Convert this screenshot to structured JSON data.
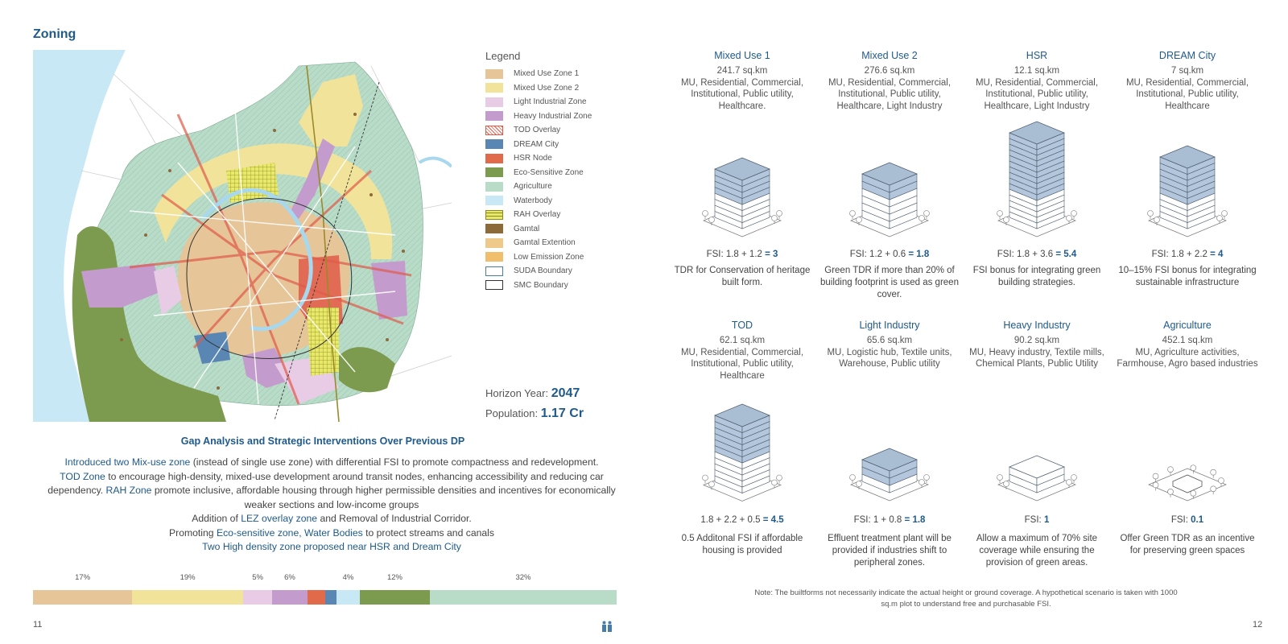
{
  "left_page": {
    "title": "Zoning",
    "legend": {
      "title": "Legend",
      "items": [
        {
          "label": "Mixed Use Zone 1",
          "color": "#e6c598"
        },
        {
          "label": "Mixed Use Zone 2",
          "color": "#f1e49a"
        },
        {
          "label": "Light Industrial Zone",
          "color": "#e8cce6"
        },
        {
          "label": "Heavy Industrial Zone",
          "color": "#c39bcc"
        },
        {
          "label": "TOD Overlay",
          "color": "#e05a4a"
        },
        {
          "label": "DREAM City",
          "color": "#5a86b4"
        },
        {
          "label": "HSR Node",
          "color": "#e06a4a"
        },
        {
          "label": "Eco-Sensitive Zone",
          "color": "#7d9b4e"
        },
        {
          "label": "Agriculture",
          "color": "#b9dcc9"
        },
        {
          "label": "Waterbody",
          "color": "#c8e8f5"
        },
        {
          "label": "RAH Overlay",
          "color": "#d6da4a"
        },
        {
          "label": "Gamtal",
          "color": "#8c6a3a"
        },
        {
          "label": "Gamtal Extention",
          "color": "#efc98a"
        },
        {
          "label": "Low Emission Zone",
          "color": "#f1be6e"
        },
        {
          "label": "SUDA Boundary",
          "color": "#4a7ca8"
        },
        {
          "label": "SMC Boundary",
          "color": "#333333"
        }
      ]
    },
    "horizon_label": "Horizon Year:",
    "horizon_value": "2047",
    "population_label": "Population:",
    "population_value": "1.17 Cr",
    "gap_title": "Gap Analysis and Strategic Interventions Over Previous DP",
    "gap": {
      "l1_a": "Introduced two Mix-use zone",
      "l1_b": " (instead of single use zone) with differential FSI to promote compactness and redevelopment.",
      "l2_a": "TOD Zone",
      "l2_b": " to encourage high-density, mixed-use development around transit nodes, enhancing accessibility and reducing car dependency. ",
      "l2_c": "RAH Zone",
      "l2_d": " promote inclusive, affordable housing through higher permissible densities and incentives for economically weaker sections and low-income groups",
      "l3_a": "Addition of ",
      "l3_b": "LEZ overlay zone",
      "l3_c": " and Removal of Industrial Corridor.",
      "l4_a": "Promoting ",
      "l4_b": "Eco-sensitive zone, Water Bodies",
      "l4_c": " to protect streams and canals",
      "l5": "Two High density zone proposed near HSR and Dream City"
    },
    "share_bar": [
      {
        "percent": 17,
        "label": "17%",
        "color": "#e6c598"
      },
      {
        "percent": 19,
        "label": "19%",
        "color": "#f1e49a"
      },
      {
        "percent": 5,
        "label": "5%",
        "color": "#e8cce6"
      },
      {
        "percent": 6,
        "label": "6%",
        "color": "#c39bcc"
      },
      {
        "percent": 3,
        "label": "",
        "color": "#e06a4a"
      },
      {
        "percent": 2,
        "label": "",
        "color": "#5a86b4"
      },
      {
        "percent": 4,
        "label": "4%",
        "color": "#c8e8f5"
      },
      {
        "percent": 12,
        "label": "12%",
        "color": "#7d9b4e"
      },
      {
        "percent": 32,
        "label": "32%",
        "color": "#b9dcc9"
      }
    ],
    "page_number": "11"
  },
  "right_page": {
    "zones": [
      {
        "title": "Mixed Use 1",
        "area": "241.7 sq.km",
        "uses": "MU, Residential, Commercial, Institutional, Public utility, Healthcare.",
        "fsi_prefix": "FSI: 1.8 + 1.2 ",
        "fsi_value": "= 3",
        "note": "TDR for Conservation of heritage built form.",
        "floors_fill": 4,
        "floors_total": 8
      },
      {
        "title": "Mixed Use 2",
        "area": "276.6 sq.km",
        "uses": "MU, Residential, Commercial, Institutional, Public utility, Healthcare, Light Industry",
        "fsi_prefix": "FSI: 1.2 + 0.6 ",
        "fsi_value": "= 1.8",
        "note": "Green TDR if more than 20% of building footprint is used as green cover.",
        "floors_fill": 2,
        "floors_total": 6
      },
      {
        "title": "HSR",
        "area": "12.1 sq.km",
        "uses": "MU, Residential, Commercial, Institutional, Public utility, Healthcare, Light Industry",
        "fsi_prefix": "FSI: 1.8 + 3.6 ",
        "fsi_value": "= 5.4",
        "note": "FSI bonus for integrating green building strategies.",
        "floors_fill": 10,
        "floors_total": 15
      },
      {
        "title": "DREAM City",
        "area": "7 sq.km",
        "uses": "MU, Residential, Commercial, Institutional, Public utility, Healthcare",
        "fsi_prefix": "FSI: 1.8 + 2.2 ",
        "fsi_value": "= 4",
        "note": "10–15% FSI bonus for integrating sustainable infrastructure",
        "floors_fill": 6,
        "floors_total": 10
      },
      {
        "title": "TOD",
        "area": "62.1 sq.km",
        "uses": "MU, Residential, Commercial, Institutional, Public utility, Healthcare",
        "fsi_prefix": "1.8 + 2.2 + 0.5 ",
        "fsi_value": "= 4.5",
        "note": "0.5 Additonal FSI if affordable housing is provided",
        "floors_fill": 6,
        "floors_total": 11
      },
      {
        "title": "Light Industry",
        "area": "65.6 sq.km",
        "uses": "MU, Logistic hub, Textile units, Warehouse, Public utility",
        "fsi_prefix": "FSI: 1 + 0.8 ",
        "fsi_value": "= 1.8",
        "note": "Effluent treatment plant will be provided if industries shift to peripheral zones.",
        "floors_fill": 2,
        "floors_total": 3
      },
      {
        "title": "Heavy Industry",
        "area": "90.2 sq.km",
        "uses": "MU, Heavy industry, Textile mills, Chemical Plants, Public Utility",
        "fsi_prefix": "FSI: ",
        "fsi_value": "1",
        "note": "Allow a maximum of 70% site coverage while ensuring the provision of green areas.",
        "floors_fill": 0,
        "floors_total": 2
      },
      {
        "title": "Agriculture",
        "area": "452.1 sq.km",
        "uses": "MU, Agriculture activities, Farmhouse, Agro based industries",
        "fsi_prefix": "FSI: ",
        "fsi_value": "0.1",
        "note": "Offer Green TDR as an incentive for preserving green spaces",
        "floors_fill": 0,
        "floors_total": 1
      }
    ],
    "footnote": "Note: The builtforms not necessarily indicate the actual height or ground coverage. A hypothetical scenario is taken with 1000 sq.m plot to understand free and purchasable FSI.",
    "page_number": "12"
  }
}
